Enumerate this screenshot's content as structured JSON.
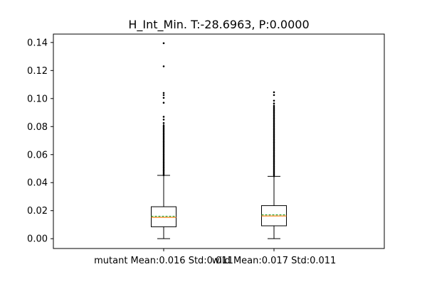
{
  "chart_data": {
    "type": "box",
    "title": "H_Int_Min. T:-28.6963, P:0.0000",
    "xlabel": "",
    "ylabel": "",
    "ylim": [
      -0.007,
      0.146
    ],
    "yticks": [
      0.0,
      0.02,
      0.04,
      0.06,
      0.08,
      0.1,
      0.12,
      0.14
    ],
    "ytick_labels": [
      "0.00",
      "0.02",
      "0.04",
      "0.06",
      "0.08",
      "0.10",
      "0.12",
      "0.14"
    ],
    "grid": false,
    "legend": "none",
    "categories": [
      "mutant Mean:0.016 Std:0.011",
      "wild Mean:0.017 Std:0.011"
    ],
    "boxes": [
      {
        "name": "mutant",
        "whisker_low": 0.0,
        "q1": 0.0085,
        "median": 0.0152,
        "mean": 0.016,
        "q3": 0.0228,
        "whisker_high": 0.0452,
        "outlier_band": [
          0.0452,
          0.081
        ],
        "outliers": [
          0.0825,
          0.085,
          0.087,
          0.097,
          0.1005,
          0.1025,
          0.104,
          0.123,
          0.1395
        ]
      },
      {
        "name": "wild",
        "whisker_low": 0.0,
        "q1": 0.0092,
        "median": 0.0162,
        "mean": 0.017,
        "q3": 0.0236,
        "whisker_high": 0.0445,
        "outlier_band": [
          0.0445,
          0.095
        ],
        "outliers": [
          0.0965,
          0.0985,
          0.1025,
          0.1045
        ]
      }
    ],
    "colors": {
      "box": "#000000",
      "median": "#ff7f0e",
      "mean": "#2ca02c",
      "outlier": "#000000"
    }
  }
}
